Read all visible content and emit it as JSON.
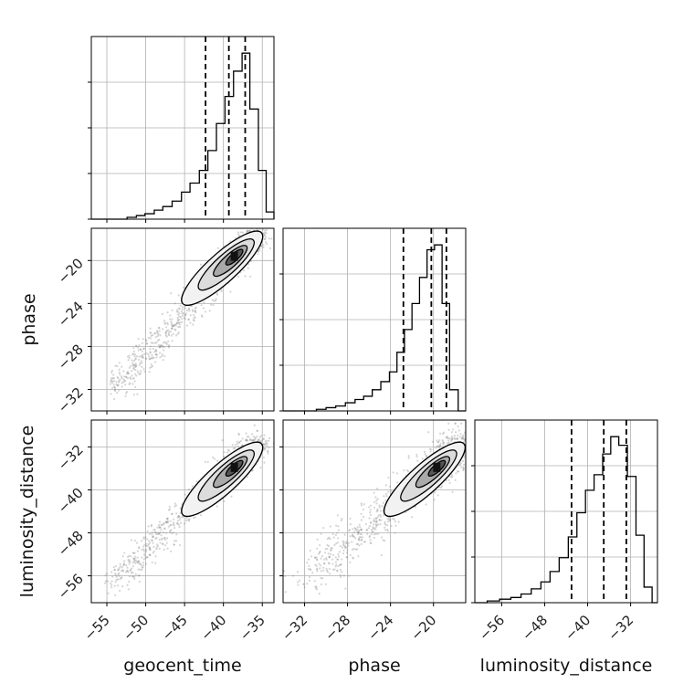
{
  "chart_data": {
    "type": "corner",
    "parameters": [
      "geocent_time",
      "phase",
      "luminosity_distance"
    ],
    "axis_labels": {
      "geocent_time": "geocent_time",
      "phase": "phase",
      "luminosity_distance": "luminosity_distance"
    },
    "ranges": {
      "geocent_time": [
        -57,
        -33.5
      ],
      "phase": [
        -34,
        -17
      ],
      "luminosity_distance": [
        -61,
        -27
      ]
    },
    "ticks": {
      "geocent_time": [
        -55,
        -50,
        -45,
        -40,
        -35
      ],
      "phase": [
        -32,
        -28,
        -24,
        -20
      ],
      "luminosity_distance": [
        -56,
        -48,
        -40,
        -32
      ]
    },
    "tick_labels": {
      "geocent_time": [
        "−55",
        "−50",
        "−45",
        "−40",
        "−35"
      ],
      "phase": [
        "−32",
        "−28",
        "−24",
        "−20"
      ],
      "luminosity_distance": [
        "−56",
        "−48",
        "−40",
        "−32"
      ]
    },
    "quantiles": {
      "geocent_time": [
        -42.3,
        -39.3,
        -37.2
      ],
      "phase": [
        -22.8,
        -20.2,
        -18.8
      ],
      "luminosity_distance": [
        -43.0,
        -37.0,
        -32.8
      ]
    },
    "histograms": {
      "geocent_time": {
        "bin_edges": [
          -57,
          -55.1,
          -53.6,
          -52.4,
          -51.2,
          -50.1,
          -48.9,
          -47.8,
          -46.6,
          -45.4,
          -44.3,
          -43.1,
          -42.0,
          -40.9,
          -39.8,
          -38.7,
          -37.6,
          -36.6,
          -35.5,
          -34.5,
          -33.5
        ],
        "counts": [
          0.0,
          0.0,
          0.0,
          0.01,
          0.02,
          0.03,
          0.05,
          0.07,
          0.1,
          0.15,
          0.2,
          0.27,
          0.38,
          0.53,
          0.68,
          0.82,
          0.92,
          0.61,
          0.27,
          0.04
        ]
      },
      "phase": {
        "bin_edges": [
          -34,
          -32.8,
          -31.8,
          -30.9,
          -30.0,
          -29.1,
          -28.2,
          -27.3,
          -26.5,
          -25.7,
          -24.9,
          -24.1,
          -23.4,
          -22.7,
          -22.0,
          -21.3,
          -20.6,
          -19.9,
          -19.2,
          -18.5,
          -17.7,
          -17
        ],
        "counts": [
          0.0,
          0.0,
          0.0,
          0.01,
          0.02,
          0.03,
          0.05,
          0.07,
          0.09,
          0.13,
          0.18,
          0.24,
          0.36,
          0.5,
          0.66,
          0.82,
          0.99,
          1.02,
          0.66,
          0.13,
          0.0
        ]
      },
      "luminosity_distance": {
        "bin_edges": [
          -61,
          -58.7,
          -56.4,
          -54.3,
          -52.4,
          -50.5,
          -48.7,
          -47.0,
          -45.3,
          -43.6,
          -42.0,
          -40.4,
          -38.8,
          -37.2,
          -35.7,
          -34.2,
          -32.6,
          -31.0,
          -29.5,
          -28.0,
          -27
        ],
        "counts": [
          0.0,
          0.01,
          0.02,
          0.03,
          0.05,
          0.08,
          0.12,
          0.18,
          0.26,
          0.38,
          0.52,
          0.65,
          0.74,
          0.86,
          0.96,
          0.91,
          0.73,
          0.39,
          0.09,
          0.0
        ]
      }
    },
    "correlations": {
      "phase_vs_geocent_time": 0.97,
      "luminosity_distance_vs_geocent_time": 0.95,
      "luminosity_distance_vs_phase": 0.96
    },
    "contour_levels": [
      0.5,
      1.0,
      1.5,
      2.0
    ],
    "grid": true,
    "scatter_color": "#888888",
    "line_color": "#000000"
  }
}
